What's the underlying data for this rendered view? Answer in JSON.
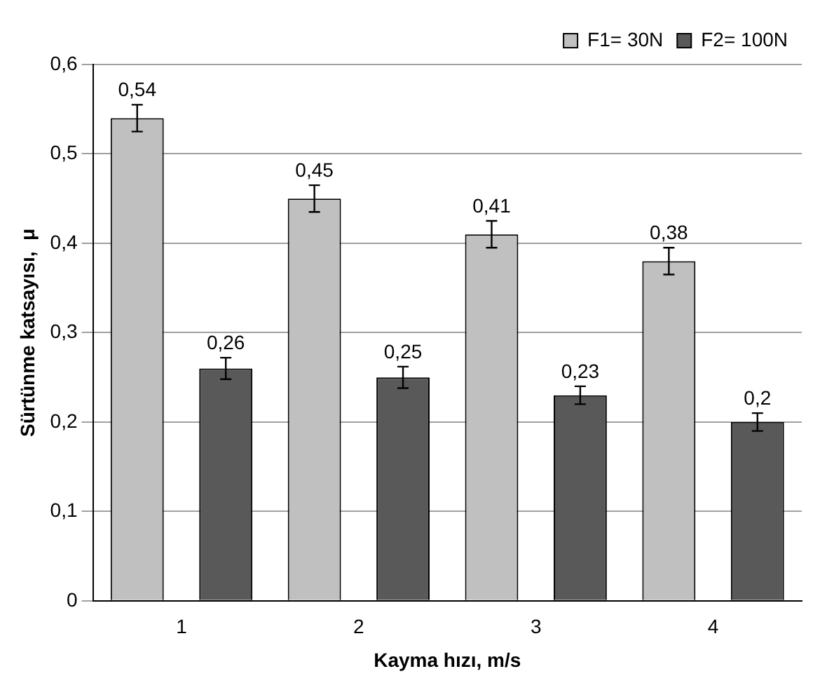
{
  "chart_data": {
    "type": "bar",
    "xlabel": "Kayma hızı, m/s",
    "ylabel": "Sürtünme katsayısı,  μ",
    "categories": [
      "1",
      "2",
      "3",
      "4"
    ],
    "series": [
      {
        "name": "F1= 30N",
        "color": "#c0c0c0",
        "values": [
          0.54,
          0.45,
          0.41,
          0.38
        ],
        "errors": [
          0.015,
          0.015,
          0.015,
          0.015
        ],
        "value_labels": [
          "0,54",
          "0,45",
          "0,41",
          "0,38"
        ]
      },
      {
        "name": "F2= 100N",
        "color": "#595959",
        "values": [
          0.26,
          0.25,
          0.23,
          0.2
        ],
        "errors": [
          0.012,
          0.012,
          0.01,
          0.01
        ],
        "value_labels": [
          "0,26",
          "0,25",
          "0,23",
          "0,2"
        ]
      }
    ],
    "ylim": [
      0,
      0.6
    ],
    "yticks": [
      0,
      {
        "value": 0.1,
        "label": "0,1"
      },
      {
        "value": 0.2,
        "label": "0,2"
      },
      {
        "value": 0.3,
        "label": "0,3"
      },
      {
        "value": 0.4,
        "label": "0,4"
      },
      {
        "value": 0.5,
        "label": "0,5"
      },
      {
        "value": 0.6,
        "label": "0,6"
      }
    ],
    "grid": "y",
    "legend": "top right"
  }
}
